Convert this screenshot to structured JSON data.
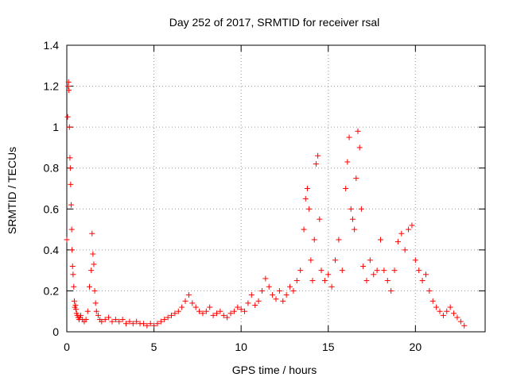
{
  "chart_data": {
    "type": "scatter",
    "title": "Day 252 of 2017, SRMTID for receiver rsal",
    "xlabel": "GPS time / hours",
    "ylabel": "SRMTID / TECUs",
    "xlim": [
      0,
      24
    ],
    "ylim": [
      0,
      1.4
    ],
    "xticks": [
      0,
      5,
      10,
      15,
      20
    ],
    "yticks": [
      0,
      0.2,
      0.4,
      0.6,
      0.8,
      1,
      1.2,
      1.4
    ],
    "ytick_labels": [
      "0",
      "0.2",
      "0.4",
      "0.6",
      "0.8",
      "1",
      "1.2",
      "1.4"
    ],
    "grid": true,
    "marker": "+",
    "color": "#ff0000",
    "series": [
      {
        "name": "SRMTID",
        "x": [
          0.0,
          0.05,
          0.08,
          0.1,
          0.12,
          0.15,
          0.18,
          0.2,
          0.22,
          0.25,
          0.28,
          0.3,
          0.33,
          0.36,
          0.4,
          0.43,
          0.46,
          0.5,
          0.53,
          0.56,
          0.6,
          0.65,
          0.7,
          0.75,
          0.8,
          0.9,
          1.0,
          1.1,
          1.2,
          1.3,
          1.4,
          1.45,
          1.5,
          1.55,
          1.6,
          1.65,
          1.7,
          1.8,
          1.9,
          2.0,
          2.2,
          2.4,
          2.6,
          2.8,
          3.0,
          3.2,
          3.4,
          3.6,
          3.8,
          4.0,
          4.2,
          4.4,
          4.6,
          4.8,
          5.0,
          5.2,
          5.4,
          5.6,
          5.8,
          6.0,
          6.2,
          6.4,
          6.6,
          6.8,
          7.0,
          7.2,
          7.4,
          7.6,
          7.8,
          8.0,
          8.2,
          8.4,
          8.6,
          8.8,
          9.0,
          9.2,
          9.4,
          9.6,
          9.8,
          10.0,
          10.2,
          10.4,
          10.6,
          10.8,
          11.0,
          11.2,
          11.4,
          11.6,
          11.8,
          12.0,
          12.2,
          12.4,
          12.6,
          12.8,
          13.0,
          13.2,
          13.4,
          13.6,
          13.7,
          13.8,
          13.9,
          14.0,
          14.1,
          14.2,
          14.3,
          14.4,
          14.5,
          14.6,
          14.8,
          15.0,
          15.2,
          15.4,
          15.6,
          15.8,
          16.0,
          16.1,
          16.2,
          16.3,
          16.4,
          16.5,
          16.6,
          16.7,
          16.8,
          16.9,
          17.0,
          17.2,
          17.4,
          17.6,
          17.8,
          18.0,
          18.2,
          18.4,
          18.6,
          18.8,
          19.0,
          19.2,
          19.4,
          19.6,
          19.8,
          20.0,
          20.2,
          20.4,
          20.6,
          20.8,
          21.0,
          21.2,
          21.4,
          21.6,
          21.8,
          22.0,
          22.2,
          22.4,
          22.6,
          22.8
        ],
        "y": [
          0.45,
          1.05,
          1.2,
          1.22,
          1.18,
          1.0,
          0.85,
          0.8,
          0.72,
          0.62,
          0.5,
          0.4,
          0.32,
          0.28,
          0.22,
          0.15,
          0.12,
          0.13,
          0.11,
          0.09,
          0.08,
          0.07,
          0.06,
          0.07,
          0.08,
          0.06,
          0.05,
          0.06,
          0.1,
          0.22,
          0.3,
          0.48,
          0.38,
          0.33,
          0.2,
          0.14,
          0.1,
          0.08,
          0.06,
          0.05,
          0.06,
          0.07,
          0.05,
          0.06,
          0.05,
          0.06,
          0.04,
          0.05,
          0.04,
          0.05,
          0.04,
          0.04,
          0.03,
          0.04,
          0.03,
          0.04,
          0.05,
          0.06,
          0.07,
          0.08,
          0.09,
          0.1,
          0.12,
          0.15,
          0.18,
          0.14,
          0.12,
          0.1,
          0.09,
          0.1,
          0.12,
          0.08,
          0.09,
          0.1,
          0.08,
          0.07,
          0.09,
          0.1,
          0.12,
          0.11,
          0.1,
          0.14,
          0.18,
          0.13,
          0.15,
          0.2,
          0.26,
          0.22,
          0.18,
          0.16,
          0.2,
          0.15,
          0.18,
          0.22,
          0.2,
          0.25,
          0.3,
          0.5,
          0.65,
          0.7,
          0.6,
          0.35,
          0.25,
          0.45,
          0.82,
          0.86,
          0.55,
          0.3,
          0.25,
          0.28,
          0.22,
          0.35,
          0.45,
          0.3,
          0.7,
          0.83,
          0.95,
          0.6,
          0.55,
          0.5,
          0.75,
          0.98,
          0.9,
          0.6,
          0.32,
          0.25,
          0.35,
          0.28,
          0.3,
          0.45,
          0.3,
          0.25,
          0.2,
          0.3,
          0.44,
          0.48,
          0.4,
          0.5,
          0.52,
          0.35,
          0.3,
          0.25,
          0.28,
          0.2,
          0.15,
          0.12,
          0.1,
          0.08,
          0.1,
          0.12,
          0.09,
          0.07,
          0.05,
          0.03
        ]
      }
    ]
  }
}
